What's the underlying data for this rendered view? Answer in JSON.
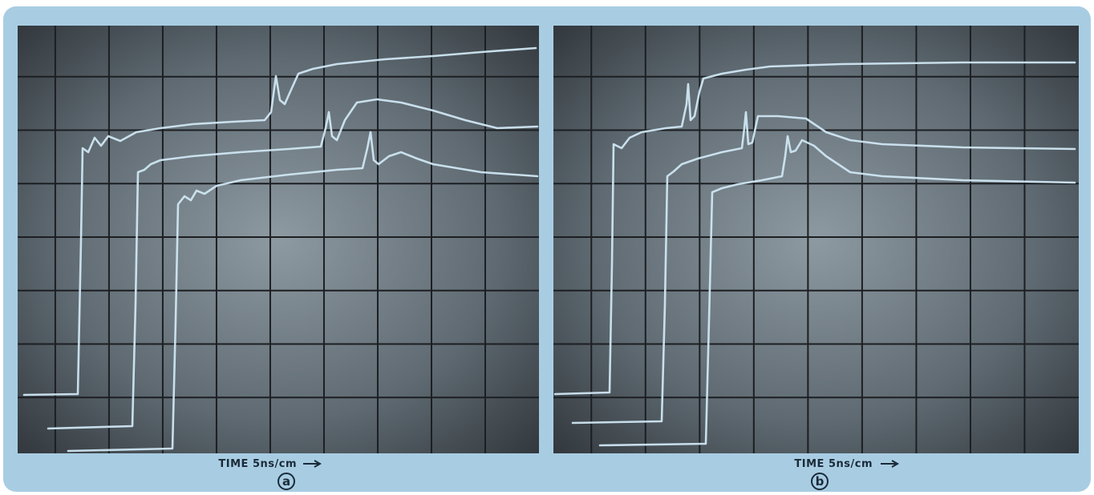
{
  "panels": [
    {
      "axis_label": "TIME 5ns/cm",
      "tag": "a"
    },
    {
      "axis_label": "TIME 5ns/cm",
      "tag": "b"
    }
  ]
}
